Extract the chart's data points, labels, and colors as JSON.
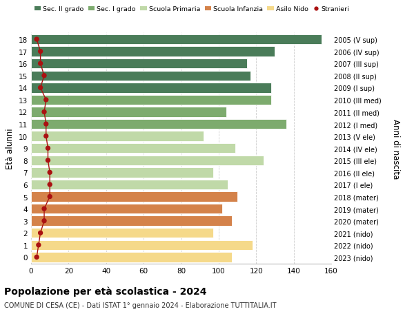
{
  "ages": [
    18,
    17,
    16,
    15,
    14,
    13,
    12,
    11,
    10,
    9,
    8,
    7,
    6,
    5,
    4,
    3,
    2,
    1,
    0
  ],
  "values": [
    155,
    130,
    115,
    117,
    128,
    128,
    104,
    136,
    92,
    109,
    124,
    97,
    105,
    110,
    102,
    107,
    97,
    118,
    107
  ],
  "stranieri": [
    3,
    5,
    5,
    7,
    5,
    8,
    7,
    8,
    8,
    9,
    9,
    10,
    10,
    10,
    7,
    7,
    5,
    4,
    3
  ],
  "right_labels": [
    "2005 (V sup)",
    "2006 (IV sup)",
    "2007 (III sup)",
    "2008 (II sup)",
    "2009 (I sup)",
    "2010 (III med)",
    "2011 (II med)",
    "2012 (I med)",
    "2013 (V ele)",
    "2014 (IV ele)",
    "2015 (III ele)",
    "2016 (II ele)",
    "2017 (I ele)",
    "2018 (mater)",
    "2019 (mater)",
    "2020 (mater)",
    "2021 (nido)",
    "2022 (nido)",
    "2023 (nido)"
  ],
  "bar_colors": [
    "#4a7c59",
    "#4a7c59",
    "#4a7c59",
    "#4a7c59",
    "#4a7c59",
    "#7dab6e",
    "#7dab6e",
    "#7dab6e",
    "#c0d9a8",
    "#c0d9a8",
    "#c0d9a8",
    "#c0d9a8",
    "#c0d9a8",
    "#d4824a",
    "#d4824a",
    "#d4824a",
    "#f5d98a",
    "#f5d98a",
    "#f5d98a"
  ],
  "legend_labels": [
    "Sec. II grado",
    "Sec. I grado",
    "Scuola Primaria",
    "Scuola Infanzia",
    "Asilo Nido",
    "Stranieri"
  ],
  "legend_colors": [
    "#4a7c59",
    "#7dab6e",
    "#c0d9a8",
    "#d4824a",
    "#f5d98a",
    "#aa1111"
  ],
  "title": "Popolazione per età scolastica - 2024",
  "subtitle": "COMUNE DI CESA (CE) - Dati ISTAT 1° gennaio 2024 - Elaborazione TUTTITALIA.IT",
  "ylabel": "Età alunni",
  "right_ylabel": "Anni di nascita",
  "xlim": [
    0,
    160
  ],
  "xticks": [
    0,
    20,
    40,
    60,
    80,
    100,
    120,
    140,
    160
  ],
  "background_color": "#ffffff",
  "grid_color": "#cccccc",
  "bar_height": 0.82,
  "stranieri_color": "#aa1111",
  "stranieri_dot_size": 28
}
